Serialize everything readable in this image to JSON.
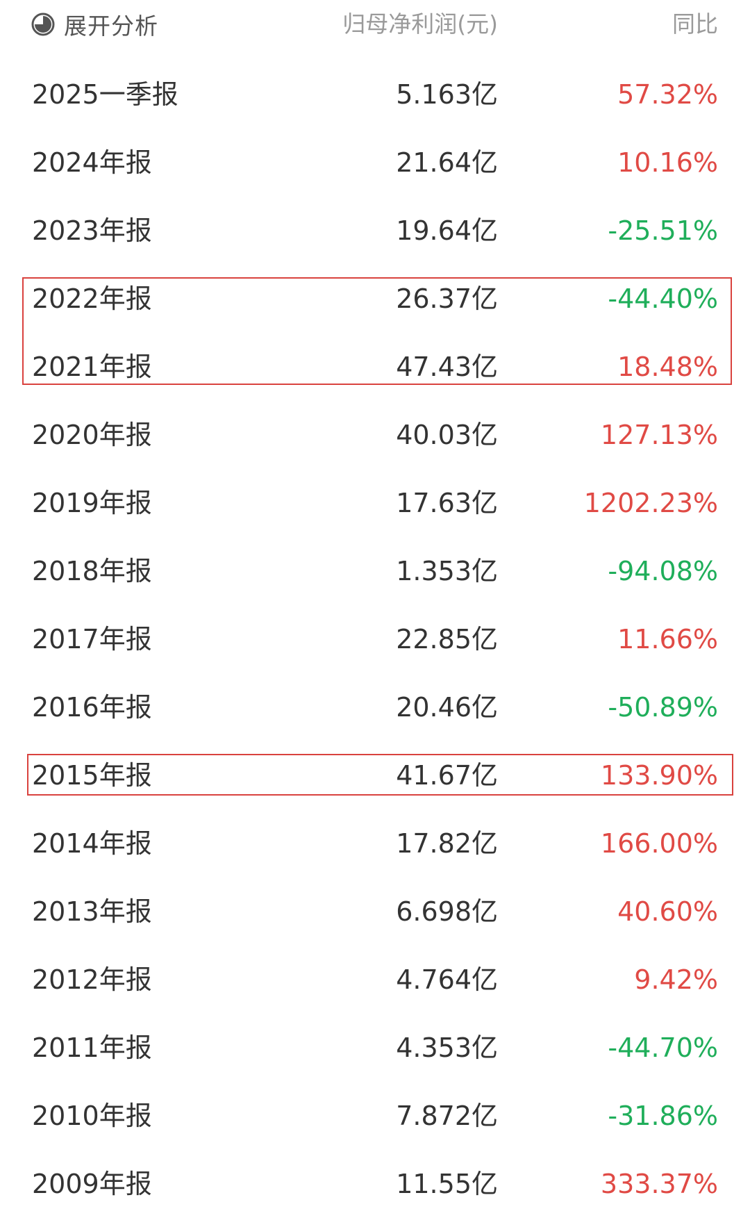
{
  "header": {
    "expand_label": "展开分析",
    "expand_icon": "pie-chart-icon",
    "profit_col": "归母净利润(元)",
    "yoy_col": "同比"
  },
  "colors": {
    "up": "#e04a45",
    "down": "#1fae5a",
    "highlight_border": "#d9423e"
  },
  "rows": [
    {
      "period": "2025一季报",
      "profit": "5.163亿",
      "yoy": "57.32%",
      "trend": "up"
    },
    {
      "period": "2024年报",
      "profit": "21.64亿",
      "yoy": "10.16%",
      "trend": "up"
    },
    {
      "period": "2023年报",
      "profit": "19.64亿",
      "yoy": "-25.51%",
      "trend": "down"
    },
    {
      "period": "2022年报",
      "profit": "26.37亿",
      "yoy": "-44.40%",
      "trend": "down"
    },
    {
      "period": "2021年报",
      "profit": "47.43亿",
      "yoy": "18.48%",
      "trend": "up"
    },
    {
      "period": "2020年报",
      "profit": "40.03亿",
      "yoy": "127.13%",
      "trend": "up"
    },
    {
      "period": "2019年报",
      "profit": "17.63亿",
      "yoy": "1202.23%",
      "trend": "up"
    },
    {
      "period": "2018年报",
      "profit": "1.353亿",
      "yoy": "-94.08%",
      "trend": "down"
    },
    {
      "period": "2017年报",
      "profit": "22.85亿",
      "yoy": "11.66%",
      "trend": "up"
    },
    {
      "period": "2016年报",
      "profit": "20.46亿",
      "yoy": "-50.89%",
      "trend": "down"
    },
    {
      "period": "2015年报",
      "profit": "41.67亿",
      "yoy": "133.90%",
      "trend": "up"
    },
    {
      "period": "2014年报",
      "profit": "17.82亿",
      "yoy": "166.00%",
      "trend": "up"
    },
    {
      "period": "2013年报",
      "profit": "6.698亿",
      "yoy": "40.60%",
      "trend": "up"
    },
    {
      "period": "2012年报",
      "profit": "4.764亿",
      "yoy": "9.42%",
      "trend": "up"
    },
    {
      "period": "2011年报",
      "profit": "4.353亿",
      "yoy": "-44.70%",
      "trend": "down"
    },
    {
      "period": "2010年报",
      "profit": "7.872亿",
      "yoy": "-31.86%",
      "trend": "down"
    },
    {
      "period": "2009年报",
      "profit": "11.55亿",
      "yoy": "333.37%",
      "trend": "up"
    }
  ],
  "highlights": [
    {
      "periods": [
        "2022年报",
        "2021年报"
      ]
    },
    {
      "periods": [
        "2015年报"
      ]
    }
  ]
}
